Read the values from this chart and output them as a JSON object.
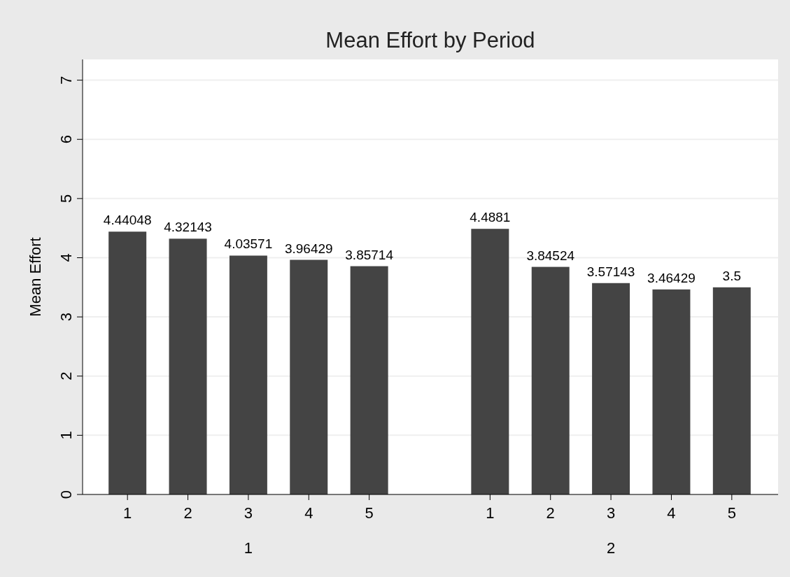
{
  "chart_data": {
    "type": "bar",
    "title": "Mean Effort by Period",
    "ylabel": "Mean Effort",
    "categories": [
      "1",
      "2",
      "3",
      "4",
      "5",
      null,
      "1",
      "2",
      "3",
      "4",
      "5"
    ],
    "values": [
      4.44048,
      4.32143,
      4.03571,
      3.96429,
      3.85714,
      null,
      4.4881,
      3.84524,
      3.57143,
      3.46429,
      3.5
    ],
    "color": "#444444",
    "ylim": [
      0,
      7.35
    ],
    "yticks": [
      0,
      1,
      2,
      3,
      4,
      5,
      6,
      7
    ],
    "grid": "y",
    "data_labels": true,
    "annotations": [
      "1",
      "2"
    ]
  }
}
